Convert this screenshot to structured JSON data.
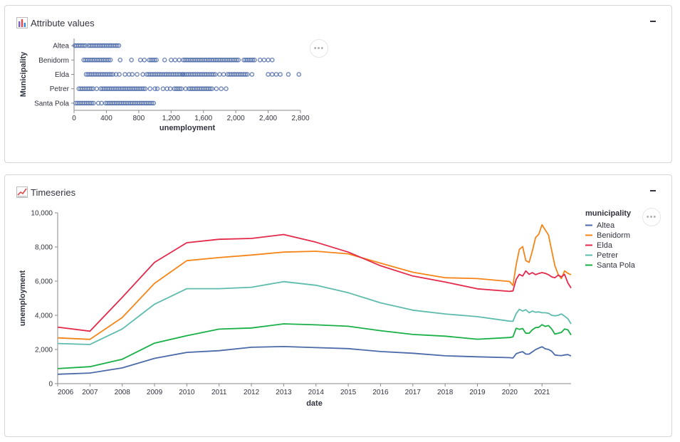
{
  "panels": {
    "attribute": {
      "title": "Attribute values",
      "icon": "bar-chart-icon"
    },
    "timeseries": {
      "title": "Timeseries",
      "icon": "line-chart-icon"
    }
  },
  "colors": {
    "Altea": "#4c6aa9",
    "Benidorm": "#f58518",
    "Elda": "#e4294b",
    "Petrer": "#5ebcad",
    "Santa Pola": "#18b046",
    "point": "#4c6aa9"
  },
  "chart_data": [
    {
      "type": "scatter",
      "xlabel": "unemployment",
      "ylabel": "Municipality",
      "xlim": [
        0,
        2800
      ],
      "x_ticks": [
        0,
        400,
        800,
        1200,
        1600,
        2000,
        2400,
        2800
      ],
      "x_tick_labels": [
        "0",
        "400",
        "800",
        "1,200",
        "1,600",
        "2,000",
        "2,400",
        "2,800"
      ],
      "categories": [
        "Altea",
        "Benidorm",
        "Elda",
        "Petrer",
        "Santa Pola"
      ],
      "grid": false,
      "series": [
        {
          "category": "Altea",
          "ranges": [
            [
              10,
              150
            ],
            [
              180,
              560
            ]
          ],
          "points": []
        },
        {
          "category": "Benidorm",
          "ranges": [
            [
              120,
              470
            ],
            [
              930,
              1020
            ],
            [
              1350,
              2050
            ],
            [
              2100,
              2250
            ]
          ],
          "points": [
            570,
            710,
            820,
            870,
            1120,
            1200,
            1250,
            1300,
            2300,
            2350,
            2400,
            2450
          ]
        },
        {
          "category": "Elda",
          "ranges": [
            [
              150,
              480
            ],
            [
              900,
              1350
            ],
            [
              1350,
              1750
            ],
            [
              1900,
              2150
            ]
          ],
          "points": [
            520,
            560,
            630,
            680,
            720,
            780,
            850,
            1800,
            1850,
            2200,
            2400,
            2450,
            2500,
            2550,
            2650,
            2780
          ]
        },
        {
          "category": "Petrer",
          "ranges": [
            [
              60,
              240
            ],
            [
              330,
              900
            ],
            [
              1240,
              1340
            ],
            [
              1420,
              1710
            ]
          ],
          "points": [
            280,
            940,
            1000,
            1030,
            1100,
            1150,
            1190,
            1380,
            1760,
            1820,
            1880
          ]
        },
        {
          "category": "Santa Pola",
          "ranges": [
            [
              20,
              250
            ],
            [
              390,
              1000
            ]
          ],
          "points": [
            300,
            340
          ]
        }
      ]
    },
    {
      "type": "line",
      "xlabel": "date",
      "ylabel": "unemployment",
      "ylim": [
        0,
        10000
      ],
      "y_ticks": [
        0,
        2000,
        4000,
        6000,
        8000,
        10000
      ],
      "y_tick_labels": [
        "0",
        "2,000",
        "4,000",
        "6,000",
        "8,000",
        "10,000"
      ],
      "xlim": [
        2006,
        2021.9
      ],
      "x_ticks": [
        2006,
        2007,
        2008,
        2009,
        2010,
        2011,
        2012,
        2013,
        2014,
        2015,
        2016,
        2017,
        2018,
        2019,
        2020,
        2021
      ],
      "x_tick_labels": [
        "2006",
        "2007",
        "2008",
        "2009",
        "2010",
        "2011",
        "2012",
        "2013",
        "2014",
        "2015",
        "2016",
        "2017",
        "2018",
        "2019",
        "2020",
        "2021"
      ],
      "legend": {
        "title": "municipality",
        "position": "right"
      },
      "grid": false,
      "series": [
        {
          "name": "Altea",
          "x": [
            2006,
            2007,
            2008,
            2009,
            2010,
            2011,
            2012,
            2013,
            2014,
            2015,
            2016,
            2017,
            2018,
            2019,
            2020,
            2020.1,
            2020.2,
            2020.3,
            2020.4,
            2020.5,
            2020.6,
            2020.7,
            2020.8,
            2020.9,
            2021,
            2021.1,
            2021.2,
            2021.3,
            2021.4,
            2021.5,
            2021.6,
            2021.7,
            2021.8,
            2021.9
          ],
          "values": [
            550,
            620,
            920,
            1480,
            1830,
            1930,
            2130,
            2170,
            2110,
            2050,
            1880,
            1780,
            1630,
            1570,
            1520,
            1500,
            1750,
            1820,
            1870,
            1730,
            1730,
            1860,
            1990,
            2080,
            2160,
            2040,
            2000,
            1900,
            1680,
            1650,
            1640,
            1680,
            1700,
            1620
          ]
        },
        {
          "name": "Benidorm",
          "x": [
            2006,
            2007,
            2008,
            2009,
            2010,
            2011,
            2012,
            2013,
            2014,
            2015,
            2016,
            2017,
            2018,
            2019,
            2020,
            2020.1,
            2020.2,
            2020.3,
            2020.4,
            2020.5,
            2020.6,
            2020.7,
            2020.8,
            2020.9,
            2021,
            2021.1,
            2021.2,
            2021.3,
            2021.4,
            2021.5,
            2021.6,
            2021.7,
            2021.8,
            2021.9
          ],
          "values": [
            2680,
            2590,
            3870,
            5870,
            7200,
            7380,
            7530,
            7700,
            7750,
            7600,
            7050,
            6520,
            6200,
            6150,
            5980,
            5750,
            6960,
            7860,
            8020,
            7200,
            7100,
            7760,
            8540,
            8750,
            9300,
            9000,
            8700,
            7800,
            6900,
            6400,
            6150,
            6600,
            6460,
            6380
          ]
        },
        {
          "name": "Elda",
          "x": [
            2006,
            2007,
            2008,
            2009,
            2010,
            2011,
            2012,
            2013,
            2014,
            2015,
            2016,
            2017,
            2018,
            2019,
            2020,
            2020.1,
            2020.2,
            2020.3,
            2020.4,
            2020.5,
            2020.6,
            2020.7,
            2020.8,
            2020.9,
            2021,
            2021.1,
            2021.2,
            2021.3,
            2021.4,
            2021.5,
            2021.6,
            2021.7,
            2021.8,
            2021.9
          ],
          "values": [
            3310,
            3070,
            5050,
            7100,
            8250,
            8450,
            8500,
            8730,
            8280,
            7700,
            6900,
            6300,
            5950,
            5550,
            5400,
            5430,
            6100,
            6400,
            6300,
            6600,
            6400,
            6500,
            6380,
            6450,
            6500,
            6460,
            6380,
            6250,
            6200,
            6350,
            6250,
            6400,
            5900,
            5600
          ]
        },
        {
          "name": "Petrer",
          "x": [
            2006,
            2007,
            2008,
            2009,
            2010,
            2011,
            2012,
            2013,
            2014,
            2015,
            2016,
            2017,
            2018,
            2019,
            2020,
            2020.1,
            2020.2,
            2020.3,
            2020.4,
            2020.5,
            2020.6,
            2020.7,
            2020.8,
            2020.9,
            2021,
            2021.1,
            2021.2,
            2021.3,
            2021.4,
            2021.5,
            2021.6,
            2021.7,
            2021.8,
            2021.9
          ],
          "values": [
            2350,
            2290,
            3200,
            4650,
            5560,
            5560,
            5640,
            5970,
            5760,
            5320,
            4730,
            4300,
            4080,
            3920,
            3660,
            3650,
            4100,
            4350,
            4250,
            4330,
            4150,
            4250,
            4180,
            4200,
            4150,
            4150,
            4120,
            4000,
            3970,
            4000,
            4080,
            3950,
            3800,
            3500
          ]
        },
        {
          "name": "Santa Pola",
          "x": [
            2006,
            2007,
            2008,
            2009,
            2010,
            2011,
            2012,
            2013,
            2014,
            2015,
            2016,
            2017,
            2018,
            2019,
            2020,
            2020.1,
            2020.2,
            2020.3,
            2020.4,
            2020.5,
            2020.6,
            2020.7,
            2020.8,
            2020.9,
            2021,
            2021.1,
            2021.2,
            2021.3,
            2021.4,
            2021.5,
            2021.6,
            2021.7,
            2021.8,
            2021.9
          ],
          "values": [
            880,
            990,
            1430,
            2370,
            2810,
            3190,
            3260,
            3500,
            3440,
            3360,
            3100,
            2880,
            2780,
            2600,
            2700,
            2740,
            3240,
            3180,
            3230,
            2950,
            2950,
            3150,
            3280,
            3300,
            3450,
            3350,
            3400,
            3200,
            2900,
            2950,
            3000,
            3200,
            3150,
            2850
          ]
        }
      ]
    }
  ]
}
